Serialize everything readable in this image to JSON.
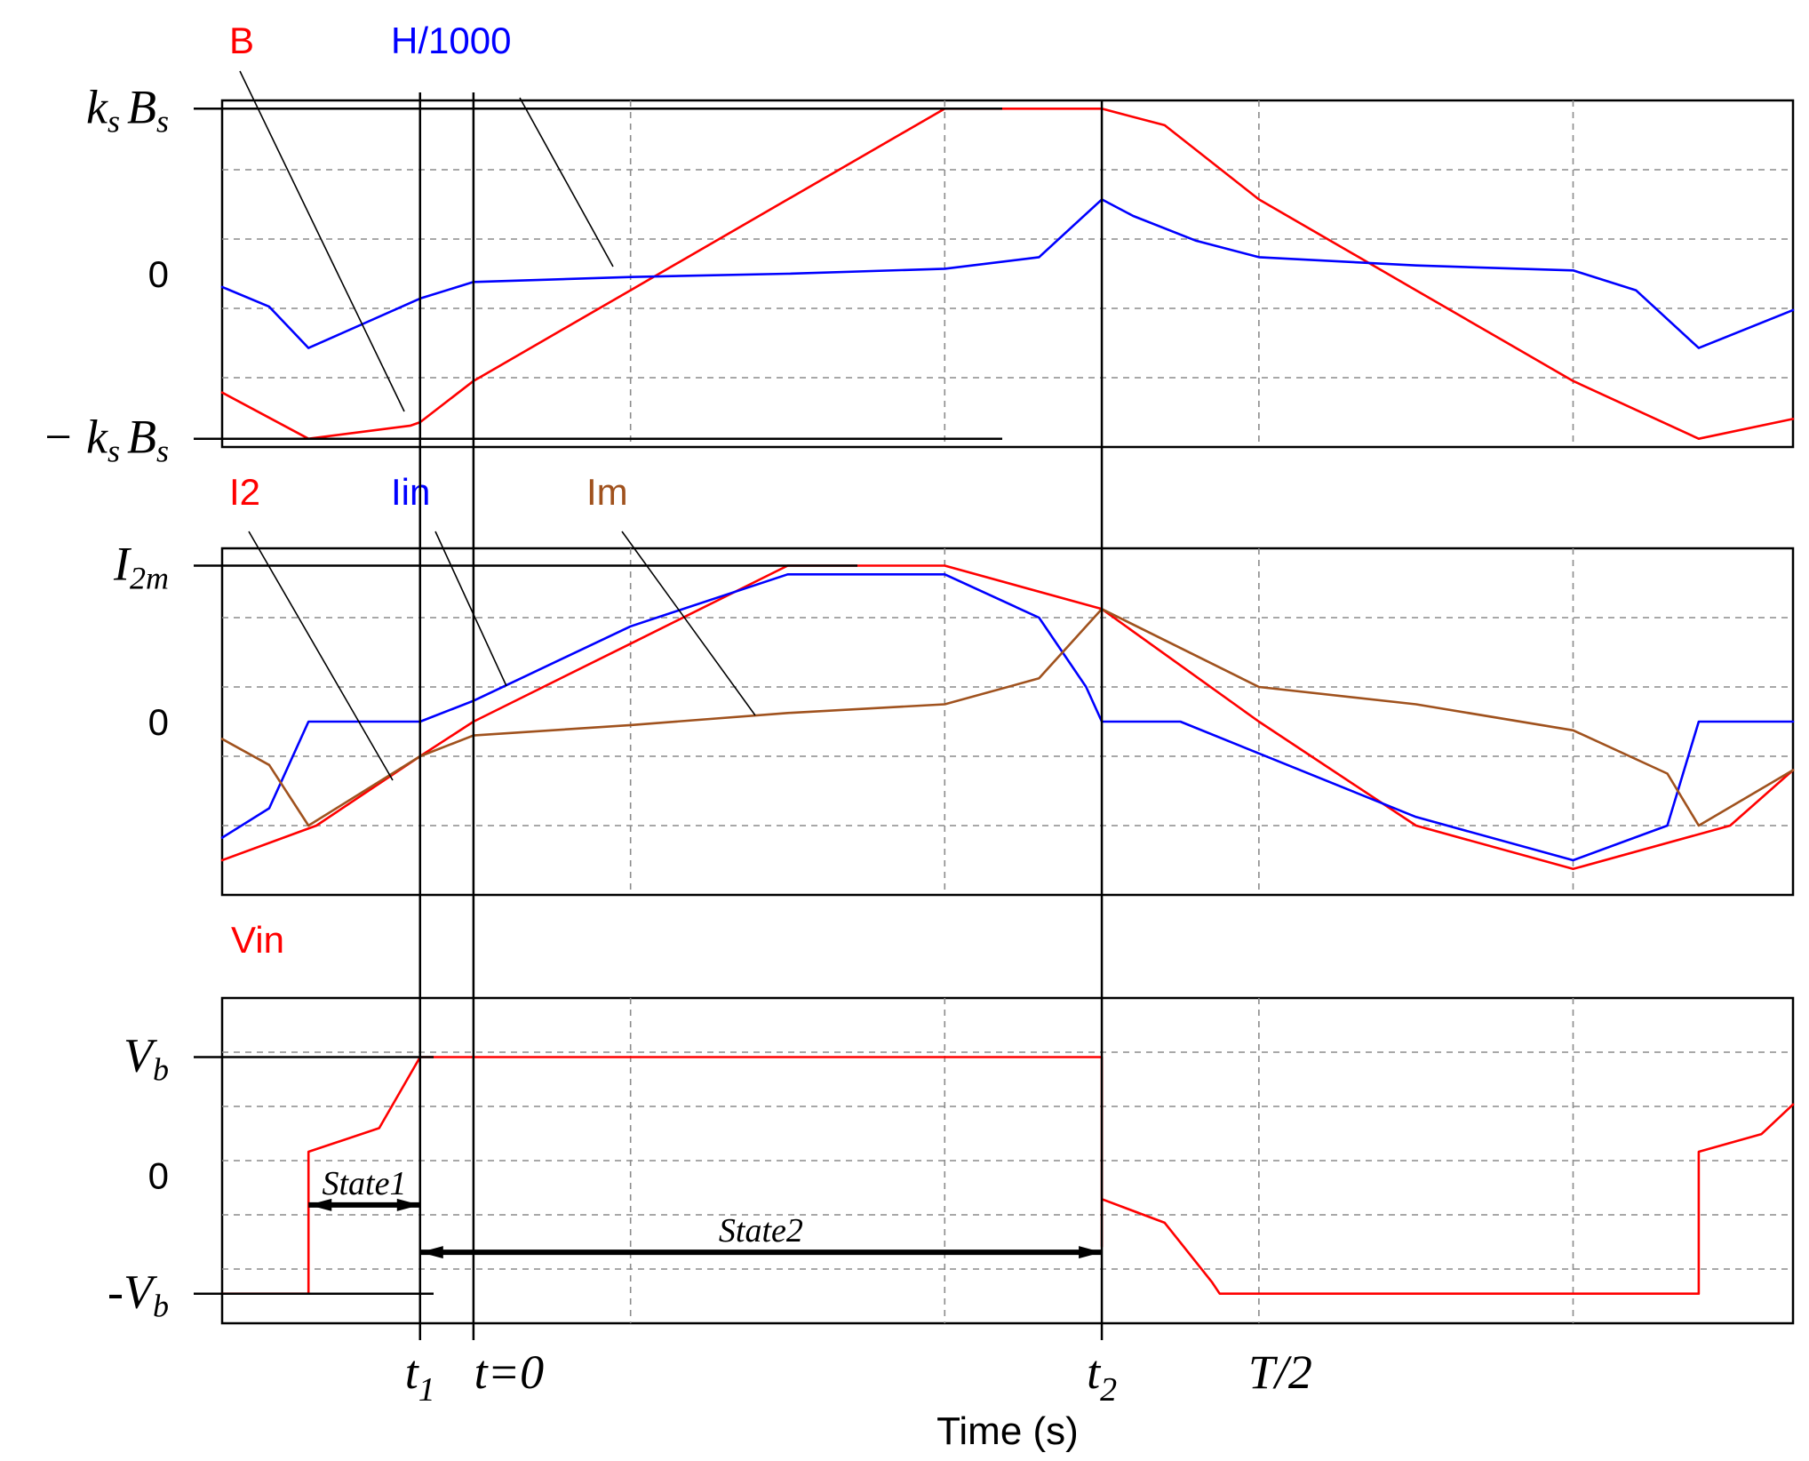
{
  "xlabel": "Time (s)",
  "colors": {
    "red": "#ff0000",
    "blue": "#0000ff",
    "brown": "#a0521e",
    "grid": "#8c8c8c"
  },
  "x_markers": [
    {
      "id": "t1",
      "main": "t",
      "sub": "1",
      "t": -0.034
    },
    {
      "id": "t0",
      "main": "t=0",
      "sub": "",
      "t": 0.0
    },
    {
      "id": "t2",
      "main": "t",
      "sub": "2",
      "t": 0.4
    },
    {
      "id": "thalf",
      "main": "T/2",
      "sub": "",
      "t": 0.5
    }
  ],
  "chart_data": [
    {
      "type": "line",
      "xlabel": "Time (s)",
      "xlim": [
        -0.16,
        0.84
      ],
      "ylim": [
        -1.05,
        1.05
      ],
      "grid": true,
      "y_ticks": [
        {
          "value": 1.0,
          "main": "k",
          "sub": "s",
          "main2": "B",
          "sub2": "s",
          "prefix": ""
        },
        {
          "value": 0.0,
          "main": "0",
          "sub": "",
          "main2": "",
          "sub2": "",
          "prefix": ""
        },
        {
          "value": -1.0,
          "main": "k",
          "sub": "s",
          "main2": "B",
          "sub2": "s",
          "prefix": "− "
        }
      ],
      "series": [
        {
          "name": "B",
          "color": "#ff0000",
          "x": [
            -0.16,
            -0.105,
            -0.04,
            -0.034,
            0.0,
            0.1,
            0.2,
            0.3,
            0.4,
            0.44,
            0.5,
            0.6,
            0.7,
            0.78,
            0.84
          ],
          "y": [
            -0.72,
            -1.0,
            -0.92,
            -0.9,
            -0.65,
            -0.1,
            0.45,
            1.0,
            1.0,
            0.9,
            0.45,
            -0.1,
            -0.65,
            -1.0,
            -0.88
          ]
        },
        {
          "name": "H/1000",
          "color": "#0000ff",
          "x": [
            -0.16,
            -0.13,
            -0.105,
            -0.034,
            0.0,
            0.1,
            0.2,
            0.3,
            0.36,
            0.4,
            0.42,
            0.46,
            0.5,
            0.6,
            0.7,
            0.74,
            0.78,
            0.84
          ],
          "y": [
            -0.08,
            -0.2,
            -0.45,
            -0.15,
            -0.05,
            -0.02,
            0.0,
            0.03,
            0.1,
            0.45,
            0.35,
            0.2,
            0.1,
            0.05,
            0.02,
            -0.1,
            -0.45,
            -0.22
          ]
        }
      ]
    },
    {
      "type": "line",
      "xlabel": "Time (s)",
      "xlim": [
        -0.16,
        0.84
      ],
      "ylim": [
        -1.0,
        1.0
      ],
      "grid": true,
      "y_ticks": [
        {
          "value": 0.9,
          "main": "I",
          "sub": "2m",
          "main2": "",
          "sub2": "",
          "prefix": ""
        },
        {
          "value": 0.0,
          "main": "0",
          "sub": "",
          "main2": "",
          "sub2": "",
          "prefix": ""
        }
      ],
      "series": [
        {
          "name": "I2",
          "color": "#ff0000",
          "x": [
            -0.16,
            -0.1,
            -0.034,
            0.0,
            0.1,
            0.2,
            0.3,
            0.4,
            0.5,
            0.6,
            0.7,
            0.8,
            0.84
          ],
          "y": [
            -0.8,
            -0.6,
            -0.2,
            0.0,
            0.45,
            0.9,
            0.9,
            0.65,
            0.0,
            -0.6,
            -0.85,
            -0.6,
            -0.28
          ]
        },
        {
          "name": "Iin",
          "color": "#0000ff",
          "x": [
            -0.16,
            -0.13,
            -0.105,
            -0.034,
            0.0,
            0.1,
            0.2,
            0.3,
            0.36,
            0.39,
            0.4,
            0.45,
            0.6,
            0.7,
            0.76,
            0.78,
            0.84
          ],
          "y": [
            -0.67,
            -0.5,
            0.0,
            0.0,
            0.12,
            0.55,
            0.85,
            0.85,
            0.6,
            0.2,
            0.0,
            0.0,
            -0.55,
            -0.8,
            -0.6,
            0.0,
            0.0
          ]
        },
        {
          "name": "Im",
          "color": "#a0521e",
          "x": [
            -0.16,
            -0.13,
            -0.105,
            -0.034,
            0.0,
            0.1,
            0.2,
            0.3,
            0.36,
            0.4,
            0.5,
            0.6,
            0.7,
            0.76,
            0.78,
            0.84
          ],
          "y": [
            -0.1,
            -0.25,
            -0.6,
            -0.2,
            -0.08,
            -0.02,
            0.05,
            0.1,
            0.25,
            0.65,
            0.2,
            0.1,
            -0.05,
            -0.3,
            -0.6,
            -0.28
          ]
        }
      ]
    },
    {
      "type": "line",
      "xlabel": "Time (s)",
      "xlim": [
        -0.16,
        0.84
      ],
      "ylim": [
        -1.25,
        1.5
      ],
      "grid": true,
      "y_ticks": [
        {
          "value": 1.0,
          "main": "V",
          "sub": "b",
          "main2": "",
          "sub2": "",
          "prefix": ""
        },
        {
          "value": 0.0,
          "main": "0",
          "sub": "",
          "main2": "",
          "sub2": "",
          "prefix": ""
        },
        {
          "value": -1.0,
          "main": "V",
          "sub": "b",
          "main2": "",
          "sub2": "",
          "prefix": "-"
        }
      ],
      "series": [
        {
          "name": "Vin",
          "color": "#ff0000",
          "x": [
            -0.16,
            -0.105,
            -0.105,
            -0.06,
            -0.034,
            -0.034,
            0.4,
            0.4,
            0.4,
            0.44,
            0.47,
            0.475,
            0.78,
            0.78,
            0.82,
            0.84
          ],
          "y": [
            -1.0,
            -1.0,
            0.2,
            0.4,
            1.0,
            1.0,
            1.0,
            -0.6,
            -0.2,
            -0.4,
            -0.9,
            -1.0,
            -1.0,
            0.2,
            0.35,
            0.6
          ]
        }
      ],
      "states": [
        {
          "label": "State1",
          "x_start": -0.105,
          "x_end": -0.034,
          "y": -0.25
        },
        {
          "label": "State2",
          "x_start": -0.034,
          "x_end": 0.4,
          "y": -0.65
        }
      ]
    }
  ]
}
